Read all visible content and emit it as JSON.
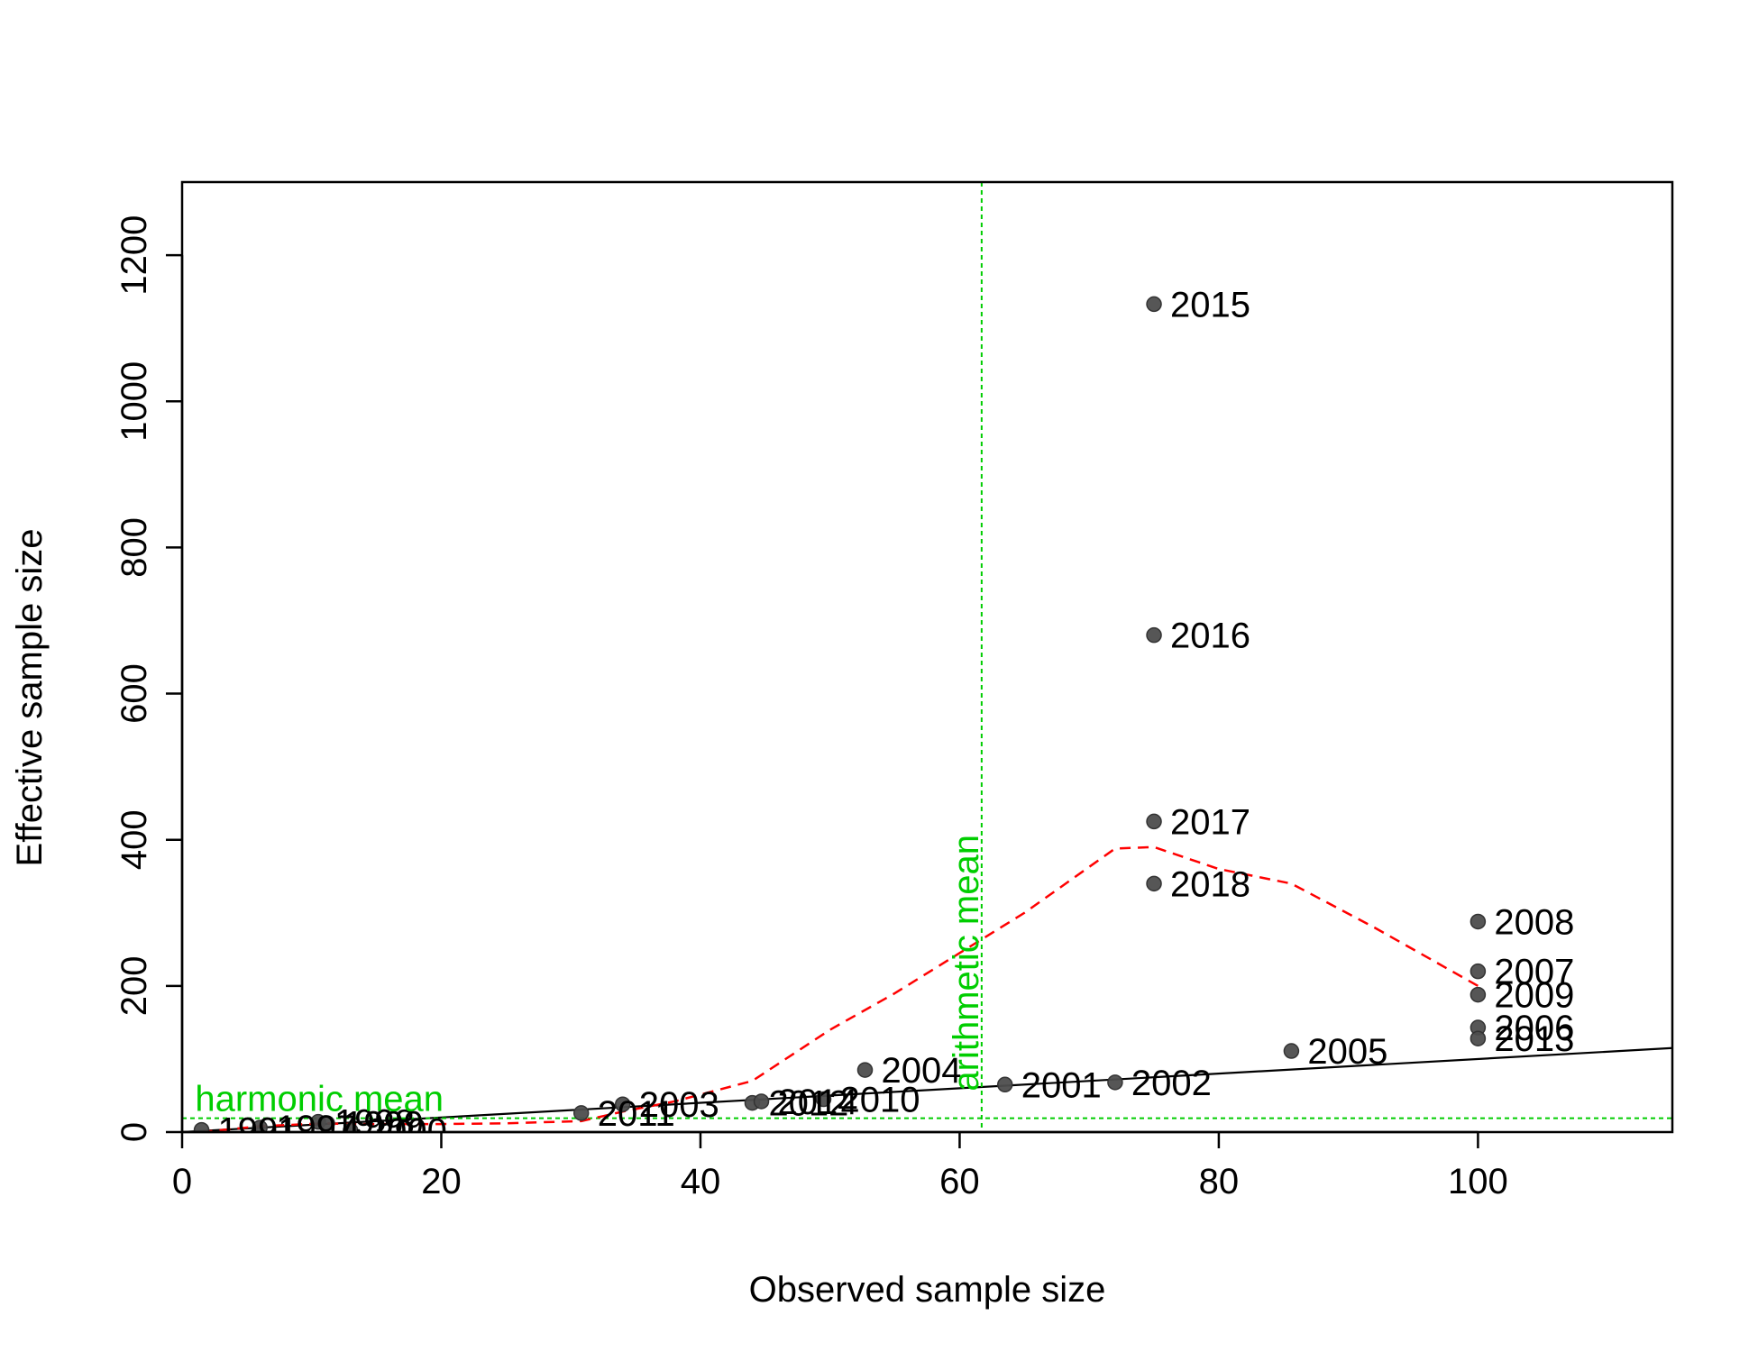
{
  "chart_data": {
    "type": "scatter",
    "xlabel": "Observed sample size",
    "ylabel": "Effective sample size",
    "xlim": [
      0,
      115
    ],
    "ylim": [
      0,
      1300
    ],
    "xticks": [
      0,
      20,
      40,
      60,
      80,
      100
    ],
    "yticks": [
      0,
      200,
      400,
      600,
      800,
      1000,
      1200
    ],
    "points": [
      {
        "label": "1991",
        "x": 1.5,
        "y": 3
      },
      {
        "label": "1997",
        "x": 6,
        "y": 6
      },
      {
        "label": "1998",
        "x": 10.5,
        "y": 14
      },
      {
        "label": "1999",
        "x": 11.2,
        "y": 12
      },
      {
        "label": "2000",
        "x": 13,
        "y": 2
      },
      {
        "label": "2011",
        "x": 30.8,
        "y": 26
      },
      {
        "label": "2003",
        "x": 34,
        "y": 38
      },
      {
        "label": "2012",
        "x": 44,
        "y": 40
      },
      {
        "label": "2014",
        "x": 44.7,
        "y": 42
      },
      {
        "label": "2010",
        "x": 49.5,
        "y": 45
      },
      {
        "label": "2004",
        "x": 52.7,
        "y": 85
      },
      {
        "label": "2001",
        "x": 63.5,
        "y": 65
      },
      {
        "label": "2002",
        "x": 72,
        "y": 68
      },
      {
        "label": "2015",
        "x": 75,
        "y": 1133
      },
      {
        "label": "2016",
        "x": 75,
        "y": 680
      },
      {
        "label": "2017",
        "x": 75,
        "y": 425
      },
      {
        "label": "2018",
        "x": 75,
        "y": 340
      },
      {
        "label": "2005",
        "x": 85.6,
        "y": 111
      },
      {
        "label": "2008",
        "x": 100,
        "y": 288
      },
      {
        "label": "2007",
        "x": 100,
        "y": 220
      },
      {
        "label": "2009",
        "x": 100,
        "y": 188
      },
      {
        "label": "2006",
        "x": 100,
        "y": 143
      },
      {
        "label": "2013",
        "x": 100,
        "y": 128
      }
    ],
    "one_to_one_line": {
      "from": [
        0,
        0
      ],
      "to": [
        115,
        115
      ],
      "color": "#000000"
    },
    "smoother": {
      "color": "#ff0000",
      "x": [
        1.5,
        6,
        11,
        13,
        20,
        25,
        30.8,
        34,
        38,
        44,
        50,
        55,
        60,
        65,
        72,
        75,
        80,
        85.6,
        92,
        100
      ],
      "y": [
        0,
        8,
        12,
        11,
        11,
        12,
        15,
        28,
        42,
        70,
        140,
        190,
        245,
        300,
        388,
        390,
        360,
        340,
        280,
        200
      ]
    },
    "harmonic_mean": {
      "label": "harmonic mean",
      "value": 19,
      "color": "#00cd00"
    },
    "arithmetic_mean": {
      "label": "arithmetic mean",
      "value": 61.7,
      "color": "#00cd00"
    },
    "point_color": "#4d4d4d"
  }
}
